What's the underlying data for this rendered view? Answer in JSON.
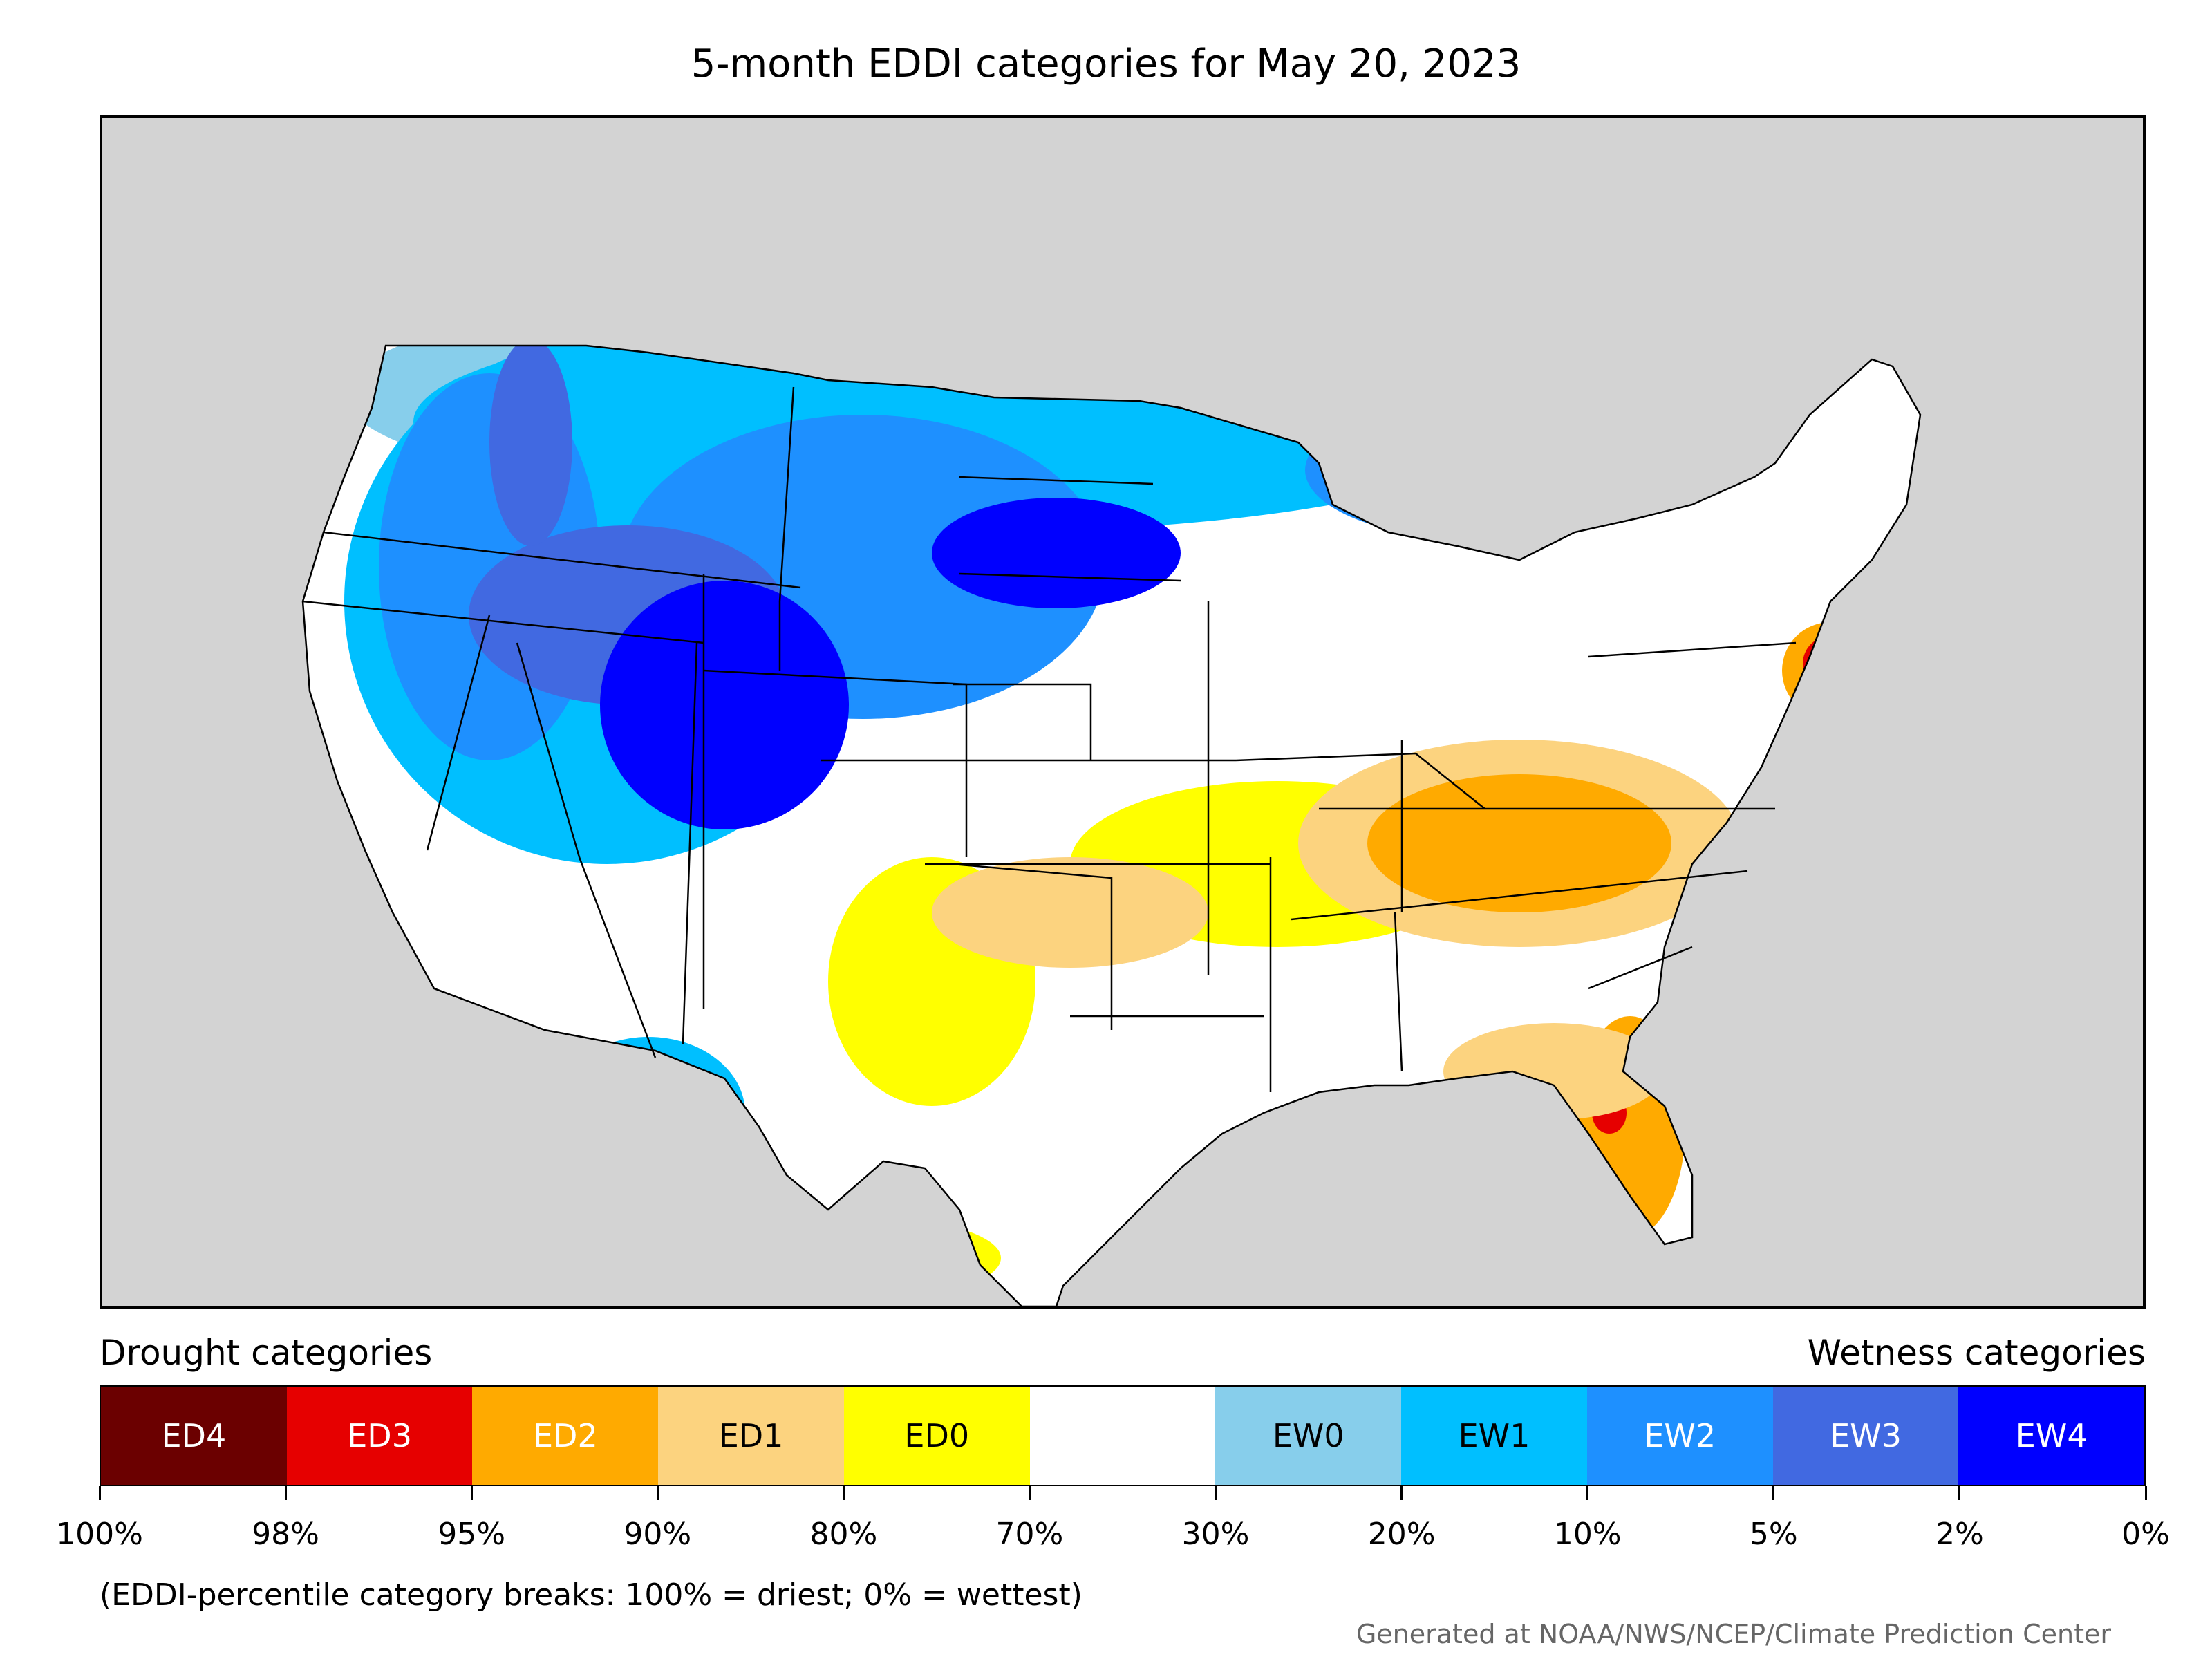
{
  "title": "5-month EDDI categories for May 20, 2023",
  "map": {
    "region": "Contiguous United States",
    "background_color": "#d3d3d3",
    "border_color": "#000000"
  },
  "legend": {
    "drought_label": "Drought categories",
    "wetness_label": "Wetness categories",
    "categories": [
      {
        "label": "ED4",
        "color": "#6b0000",
        "text_color": "#ffffff"
      },
      {
        "label": "ED3",
        "color": "#e60000",
        "text_color": "#ffffff"
      },
      {
        "label": "ED2",
        "color": "#ffaa00",
        "text_color": "#ffffff"
      },
      {
        "label": "ED1",
        "color": "#fcd37f",
        "text_color": "#000000"
      },
      {
        "label": "ED0",
        "color": "#ffff00",
        "text_color": "#000000"
      },
      {
        "label": "",
        "color": "#ffffff",
        "text_color": "#000000"
      },
      {
        "label": "EW0",
        "color": "#87ceeb",
        "text_color": "#000000"
      },
      {
        "label": "EW1",
        "color": "#00bfff",
        "text_color": "#000000"
      },
      {
        "label": "EW2",
        "color": "#1e90ff",
        "text_color": "#ffffff"
      },
      {
        "label": "EW3",
        "color": "#4169e1",
        "text_color": "#ffffff"
      },
      {
        "label": "EW4",
        "color": "#0000ff",
        "text_color": "#ffffff"
      }
    ],
    "tick_labels": [
      "100%",
      "98%",
      "95%",
      "90%",
      "80%",
      "70%",
      "30%",
      "20%",
      "10%",
      "5%",
      "2%",
      "0%"
    ]
  },
  "note": "(EDDI-percentile category breaks: 100% = driest; 0% = wettest)",
  "credit": "Generated at NOAA/NWS/NCEP/Climate Prediction Center"
}
